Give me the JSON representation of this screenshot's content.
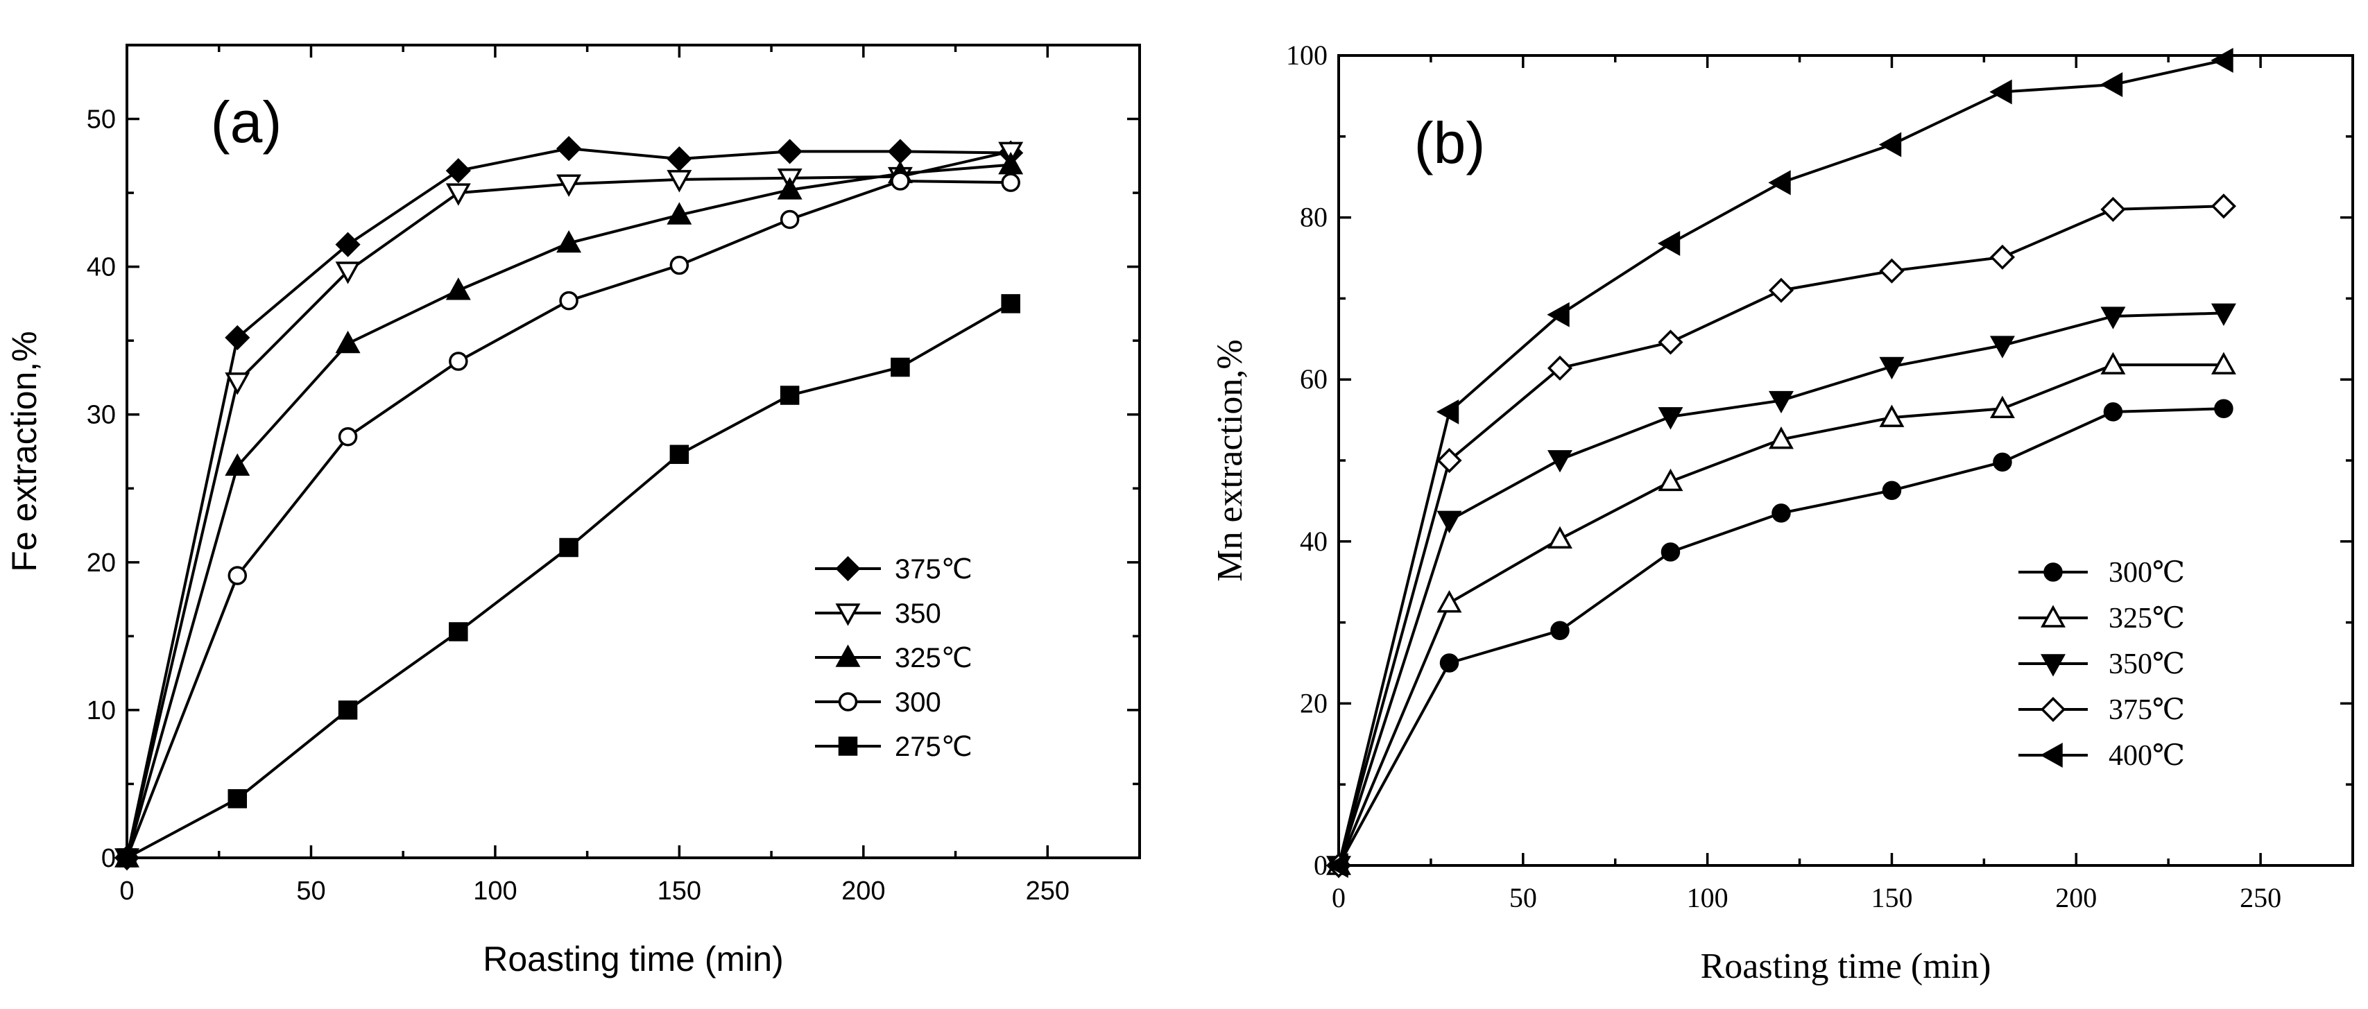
{
  "chart_data": [
    {
      "type": "line",
      "panel_label": "(a)",
      "xlabel": "Roasting time (min)",
      "ylabel": "Fe extraction,%",
      "xlim": [
        0,
        275
      ],
      "ylim": [
        0,
        55
      ],
      "xticks": [
        0,
        50,
        100,
        150,
        200,
        250
      ],
      "yticks": [
        0,
        10,
        20,
        30,
        40,
        50
      ],
      "grid": false,
      "legend_position": "bottom-right",
      "x": [
        0,
        30,
        60,
        90,
        120,
        150,
        180,
        210,
        240
      ],
      "series": [
        {
          "name": "375℃",
          "marker": "diamond-filled",
          "values": [
            0,
            35.2,
            41.5,
            46.5,
            48.0,
            47.3,
            47.8,
            47.8,
            47.7
          ]
        },
        {
          "name": "350",
          "marker": "triangle-down-open",
          "values": [
            0,
            32.2,
            39.7,
            45.0,
            45.6,
            45.9,
            46.0,
            46.1,
            47.8
          ]
        },
        {
          "name": "325℃",
          "marker": "triangle-up-filled",
          "values": [
            0,
            26.5,
            34.8,
            38.4,
            41.6,
            43.5,
            45.2,
            46.3,
            46.9
          ]
        },
        {
          "name": "300",
          "marker": "circle-open",
          "values": [
            0,
            19.1,
            28.5,
            33.6,
            37.7,
            40.1,
            43.2,
            45.8,
            45.7
          ]
        },
        {
          "name": "275℃",
          "marker": "square-filled",
          "values": [
            0,
            4.0,
            10.0,
            15.3,
            21.0,
            27.3,
            31.3,
            33.2,
            37.5
          ]
        }
      ]
    },
    {
      "type": "line",
      "panel_label": "(b)",
      "xlabel": "Roasting time (min)",
      "ylabel": "Mn extraction,%",
      "xlim": [
        0,
        275
      ],
      "ylim": [
        0,
        100
      ],
      "xticks": [
        0,
        50,
        100,
        150,
        200,
        250
      ],
      "yticks": [
        0,
        20,
        40,
        60,
        80,
        100
      ],
      "grid": false,
      "legend_position": "bottom-right",
      "x": [
        0,
        30,
        60,
        90,
        120,
        150,
        180,
        210,
        240
      ],
      "series": [
        {
          "name": "300℃",
          "marker": "circle-filled",
          "values": [
            0,
            25.0,
            29.0,
            38.7,
            43.5,
            46.3,
            49.8,
            56.0,
            56.4
          ]
        },
        {
          "name": "325℃",
          "marker": "triangle-up-open",
          "values": [
            0,
            32.4,
            40.3,
            47.4,
            52.6,
            55.3,
            56.4,
            61.8,
            61.8
          ]
        },
        {
          "name": "350℃",
          "marker": "triangle-down-filled",
          "values": [
            0,
            42.6,
            50.1,
            55.4,
            57.4,
            61.6,
            64.2,
            67.8,
            68.2
          ]
        },
        {
          "name": "375℃",
          "marker": "diamond-open",
          "values": [
            0,
            50.0,
            61.4,
            64.6,
            71.0,
            73.4,
            75.1,
            81.0,
            81.4
          ]
        },
        {
          "name": "400℃",
          "marker": "triangle-left-filled",
          "values": [
            0,
            56.0,
            68.0,
            76.8,
            84.3,
            89.0,
            95.5,
            96.4,
            99.4
          ]
        }
      ]
    }
  ]
}
